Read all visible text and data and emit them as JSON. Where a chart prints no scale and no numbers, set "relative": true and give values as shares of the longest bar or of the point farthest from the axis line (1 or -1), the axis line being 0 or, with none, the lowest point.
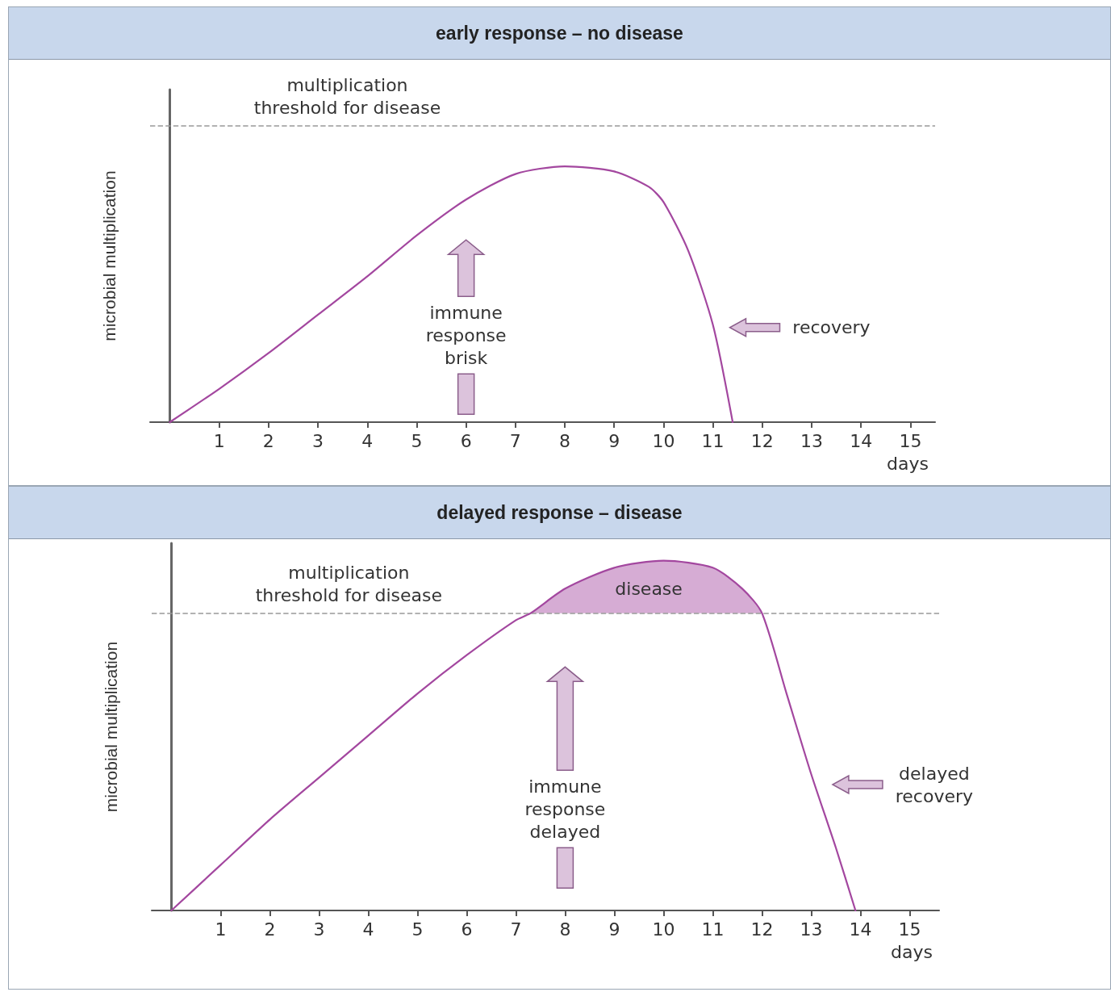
{
  "chart_data": [
    {
      "type": "line",
      "title": "early response – no disease",
      "xlabel": "days",
      "ylabel": "microbial multiplication",
      "relative": true,
      "xlim": [
        -0.4,
        15.5
      ],
      "xticks": [
        1,
        2,
        3,
        4,
        5,
        6,
        7,
        8,
        9,
        10,
        11,
        12,
        13,
        14,
        15
      ],
      "grid": false,
      "marker": "none",
      "line_style": "solid",
      "x": [
        0,
        1,
        2,
        3,
        4,
        5,
        6,
        7,
        8,
        9,
        9.7,
        10,
        10.5,
        11,
        11.4
      ],
      "series": [
        {
          "color": "#a3479f",
          "values": [
            0,
            0.13,
            0.27,
            0.42,
            0.57,
            0.73,
            0.87,
            0.97,
            1,
            0.98,
            0.92,
            0.86,
            0.67,
            0.38,
            0
          ]
        }
      ],
      "ref_lines": [
        {
          "axis": "y",
          "value": 1.16,
          "label": "multiplication\nthreshold for disease",
          "color": "#999999",
          "line_style": "dashed"
        }
      ],
      "annotations": [
        "immune\nresponse\nbrisk",
        "recovery"
      ]
    },
    {
      "type": "line",
      "title": "delayed response – disease",
      "xlabel": "days",
      "ylabel": "microbial multiplication",
      "relative": true,
      "xlim": [
        -0.4,
        15.6
      ],
      "xticks": [
        1,
        2,
        3,
        4,
        5,
        6,
        7,
        8,
        9,
        10,
        11,
        12,
        13,
        14,
        15
      ],
      "grid": false,
      "marker": "none",
      "line_style": "solid",
      "x": [
        0,
        1,
        2,
        3,
        4,
        5,
        6,
        7,
        7.3,
        8,
        9,
        10,
        11,
        11.6,
        12,
        12.5,
        13,
        13.5,
        13.9
      ],
      "series": [
        {
          "color": "#a3479f",
          "values": [
            0,
            0.13,
            0.26,
            0.38,
            0.5,
            0.62,
            0.73,
            0.83,
            0.85,
            0.92,
            0.98,
            1,
            0.98,
            0.92,
            0.85,
            0.62,
            0.39,
            0.18,
            0
          ],
          "lower": [
            null,
            null,
            null,
            null,
            null,
            null,
            null,
            null,
            0.85,
            0.85,
            0.85,
            0.85,
            0.85,
            0.85,
            0.85,
            null,
            null,
            null,
            null
          ],
          "upper": [
            null,
            null,
            null,
            null,
            null,
            null,
            null,
            null,
            0.85,
            0.92,
            0.98,
            1,
            0.98,
            0.92,
            0.85,
            null,
            null,
            null,
            null
          ]
        }
      ],
      "ref_lines": [
        {
          "axis": "y",
          "value": 0.85,
          "label": "multiplication\nthreshold for disease",
          "color": "#999999",
          "line_style": "dashed"
        }
      ],
      "annotations": [
        "disease",
        "immune\nresponse\ndelayed",
        "delayed\nrecovery"
      ]
    }
  ]
}
